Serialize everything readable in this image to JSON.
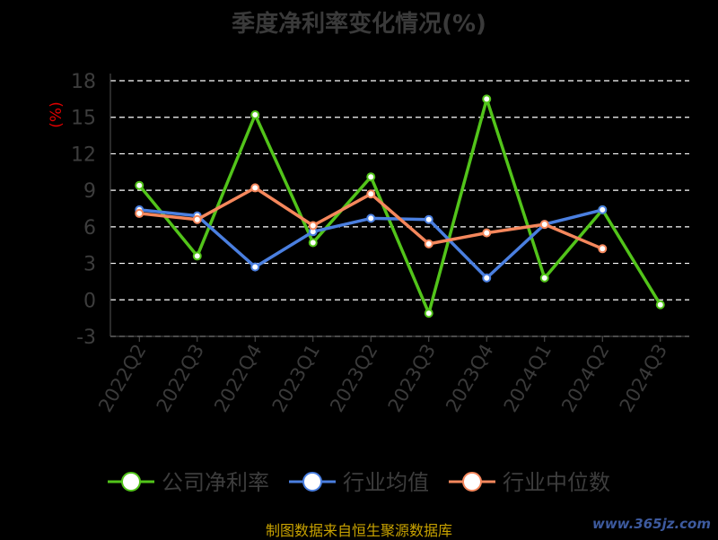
{
  "chart_data": {
    "type": "line",
    "title": "季度净利率变化情况(%)",
    "ylabel": "(%)",
    "categories": [
      "2022Q2",
      "2022Q3",
      "2022Q4",
      "2023Q1",
      "2023Q2",
      "2023Q3",
      "2023Q4",
      "2024Q1",
      "2024Q2",
      "2024Q3"
    ],
    "ylim": [
      -3,
      18
    ],
    "yticks": [
      -3,
      0,
      3,
      6,
      9,
      12,
      15,
      18
    ],
    "grid": true,
    "legend_position": "bottom",
    "series": [
      {
        "name": "公司净利率",
        "color": "#52c41a",
        "values": [
          9.4,
          3.6,
          15.2,
          4.7,
          10.1,
          -1.1,
          16.5,
          1.8,
          7.4,
          -0.4
        ]
      },
      {
        "name": "行业均值",
        "color": "#4a7fe0",
        "values": [
          7.4,
          6.9,
          2.7,
          5.6,
          6.7,
          6.6,
          1.8,
          6.2,
          7.4,
          null
        ]
      },
      {
        "name": "行业中位数",
        "color": "#f5875c",
        "values": [
          7.1,
          6.6,
          9.2,
          6.1,
          8.7,
          4.6,
          5.5,
          6.2,
          4.2,
          null
        ]
      }
    ]
  },
  "source_text": "制图数据来自恒生聚源数据库",
  "watermark": "www.365jz.com"
}
